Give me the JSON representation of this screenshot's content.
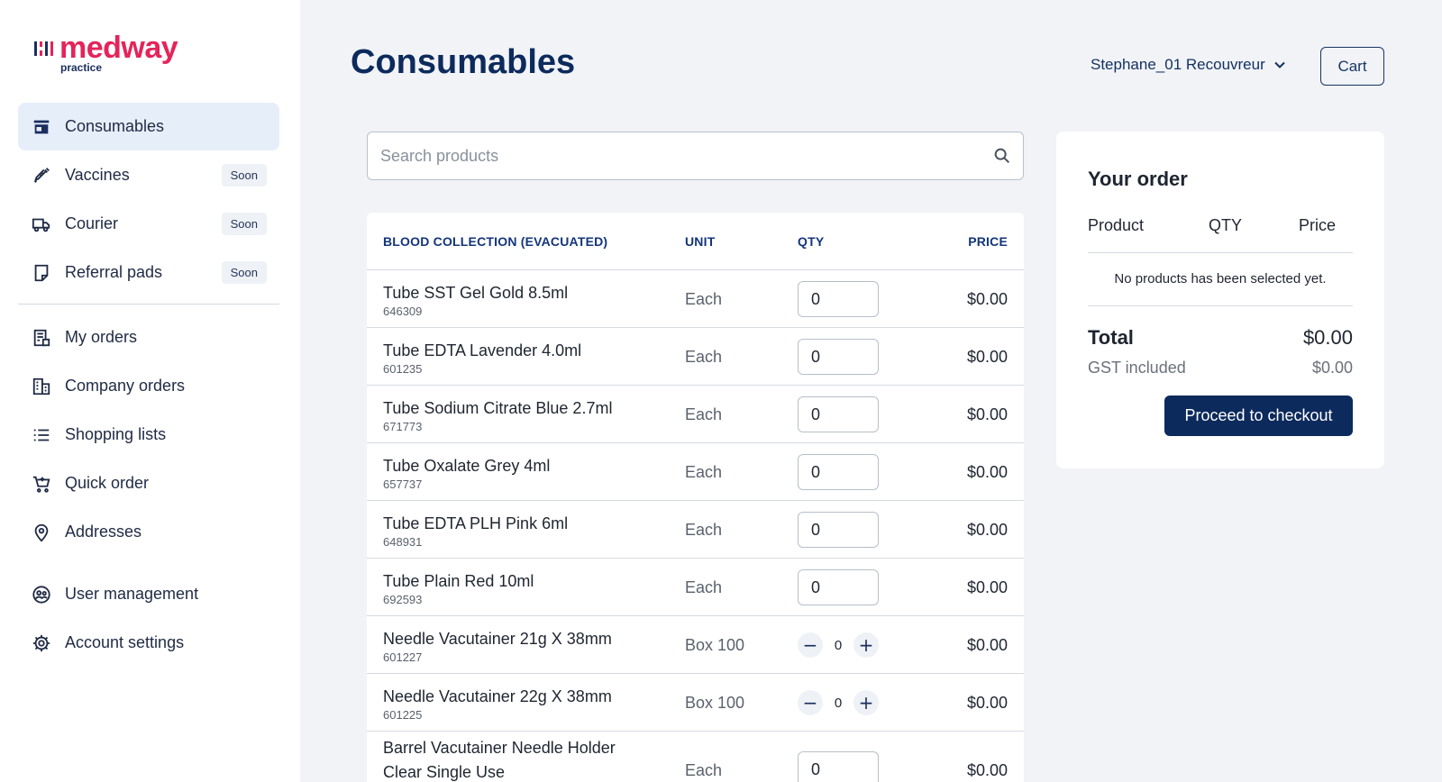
{
  "brand": {
    "name": "medway",
    "tagline": "practice",
    "color": "#e4245a"
  },
  "sidebar": {
    "primary": [
      {
        "label": "Consumables",
        "icon": "store-icon",
        "active": true,
        "badge": ""
      },
      {
        "label": "Vaccines",
        "icon": "syringe-icon",
        "active": false,
        "badge": "Soon"
      },
      {
        "label": "Courier",
        "icon": "truck-icon",
        "active": false,
        "badge": "Soon"
      },
      {
        "label": "Referral pads",
        "icon": "note-icon",
        "active": false,
        "badge": "Soon"
      }
    ],
    "secondary": [
      {
        "label": "My orders",
        "icon": "receipt-icon"
      },
      {
        "label": "Company orders",
        "icon": "building-icon"
      },
      {
        "label": "Shopping lists",
        "icon": "list-icon"
      },
      {
        "label": "Quick order",
        "icon": "cart-plus-icon"
      },
      {
        "label": "Addresses",
        "icon": "location-pin-icon"
      }
    ],
    "tertiary": [
      {
        "label": "User management",
        "icon": "user-circle-icon"
      },
      {
        "label": "Account settings",
        "icon": "gear-icon"
      }
    ]
  },
  "header": {
    "title": "Consumables",
    "user_name": "Stephane_01 Recouvreur",
    "cart_label": "Cart"
  },
  "search": {
    "placeholder": "Search products",
    "value": ""
  },
  "table": {
    "columns": {
      "name": "BLOOD COLLECTION (EVACUATED)",
      "unit": "UNIT",
      "qty": "QTY",
      "price": "PRICE"
    },
    "rows": [
      {
        "name": "Tube SST Gel Gold 8.5ml",
        "code": "646309",
        "unit": "Each",
        "qty": "0",
        "control": "input",
        "price": "$0.00"
      },
      {
        "name": "Tube EDTA Lavender 4.0ml",
        "code": "601235",
        "unit": "Each",
        "qty": "0",
        "control": "input",
        "price": "$0.00"
      },
      {
        "name": "Tube Sodium Citrate Blue 2.7ml",
        "code": "671773",
        "unit": "Each",
        "qty": "0",
        "control": "input",
        "price": "$0.00"
      },
      {
        "name": "Tube Oxalate Grey 4ml",
        "code": "657737",
        "unit": "Each",
        "qty": "0",
        "control": "input",
        "price": "$0.00"
      },
      {
        "name": "Tube EDTA PLH Pink 6ml",
        "code": "648931",
        "unit": "Each",
        "qty": "0",
        "control": "input",
        "price": "$0.00"
      },
      {
        "name": "Tube Plain Red 10ml",
        "code": "692593",
        "unit": "Each",
        "qty": "0",
        "control": "input",
        "price": "$0.00"
      },
      {
        "name": "Needle Vacutainer 21g X 38mm",
        "code": "601227",
        "unit": "Box 100",
        "qty": "0",
        "control": "stepper",
        "price": "$0.00"
      },
      {
        "name": "Needle Vacutainer 22g X 38mm",
        "code": "601225",
        "unit": "Box 100",
        "qty": "0",
        "control": "stepper",
        "price": "$0.00"
      },
      {
        "name": "Barrel Vacutainer Needle Holder Clear Single Use",
        "code": "",
        "unit": "Each",
        "qty": "0",
        "control": "input",
        "price": "$0.00"
      }
    ]
  },
  "order": {
    "title": "Your order",
    "columns": {
      "product": "Product",
      "qty": "QTY",
      "price": "Price"
    },
    "empty_message": "No products has been selected yet.",
    "total_label": "Total",
    "total_value": "$0.00",
    "gst_label": "GST included",
    "gst_value": "$0.00",
    "checkout_label": "Proceed to checkout"
  }
}
